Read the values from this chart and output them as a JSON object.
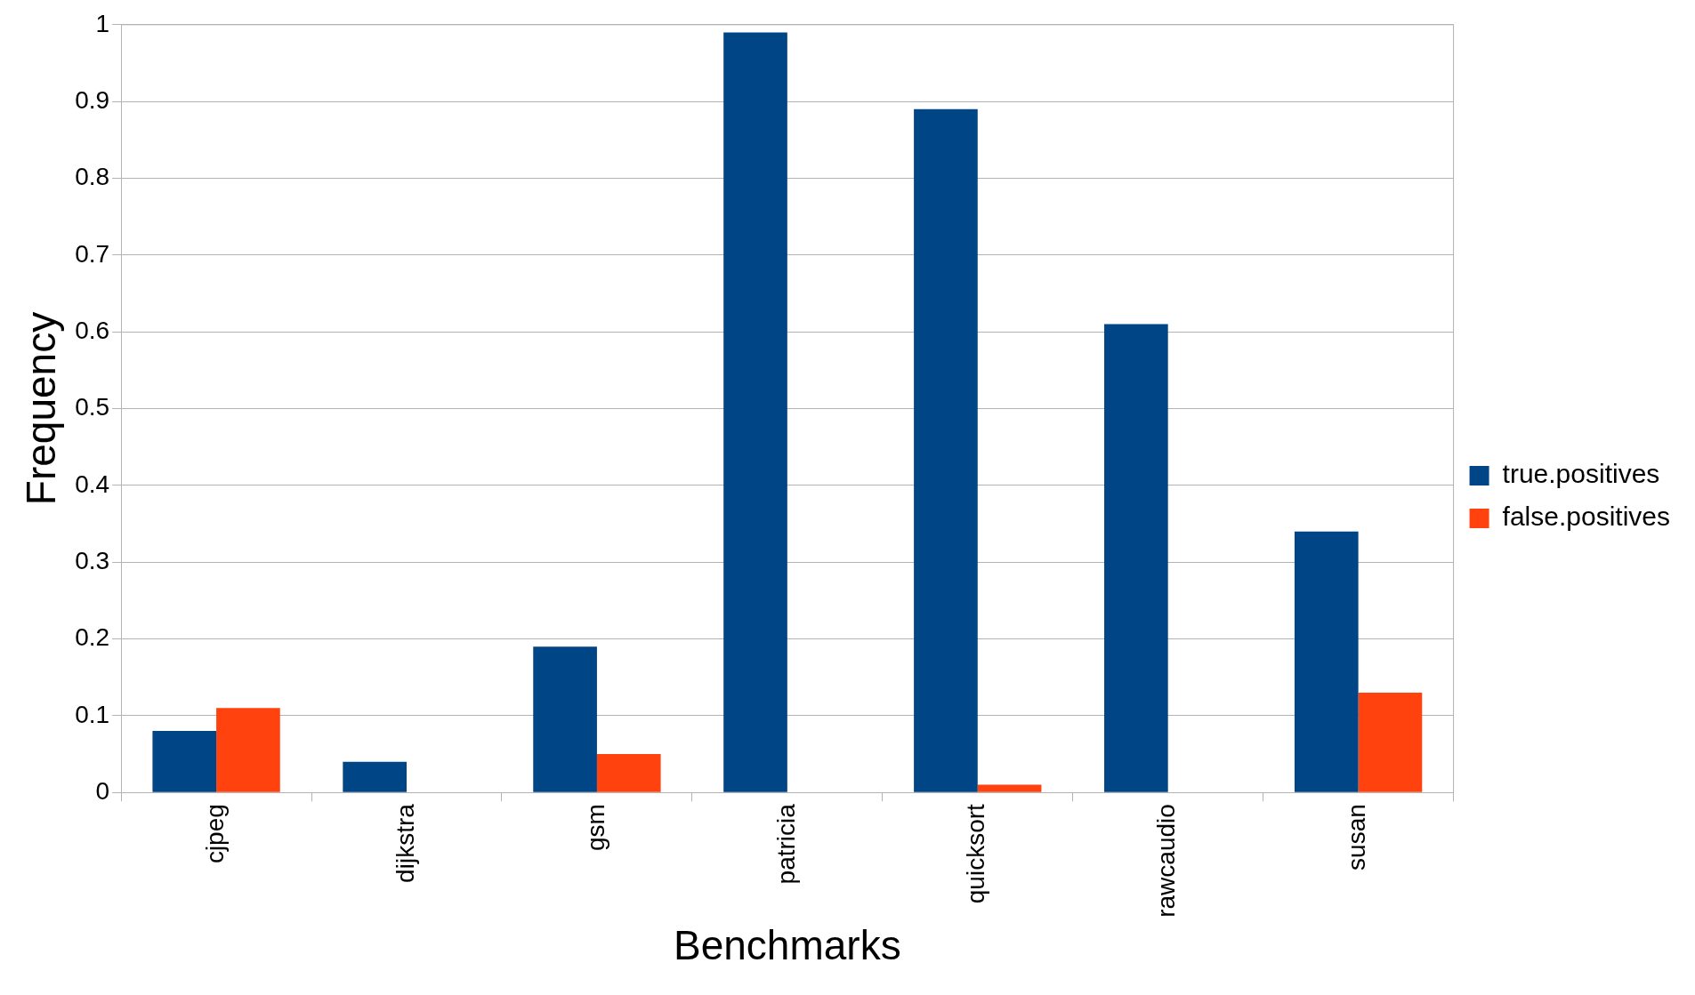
{
  "chart_data": {
    "type": "bar",
    "xlabel": "Benchmarks",
    "ylabel": "Frequency",
    "categories": [
      "cjpeg",
      "dijkstra",
      "gsm",
      "patricia",
      "quicksort",
      "rawcaudio",
      "susan"
    ],
    "series": [
      {
        "name": "true.positives",
        "color": "#004586",
        "values": [
          0.08,
          0.04,
          0.19,
          0.99,
          0.89,
          0.61,
          0.34
        ]
      },
      {
        "name": "false.positives",
        "color": "#ff420e",
        "values": [
          0.11,
          0,
          0.05,
          0,
          0.01,
          0,
          0.13
        ]
      }
    ],
    "ylim": [
      0,
      1
    ],
    "yticks": [
      0,
      0.1,
      0.2,
      0.3,
      0.4,
      0.5,
      0.6,
      0.7,
      0.8,
      0.9,
      1
    ],
    "grid": "y",
    "legend": "right"
  }
}
